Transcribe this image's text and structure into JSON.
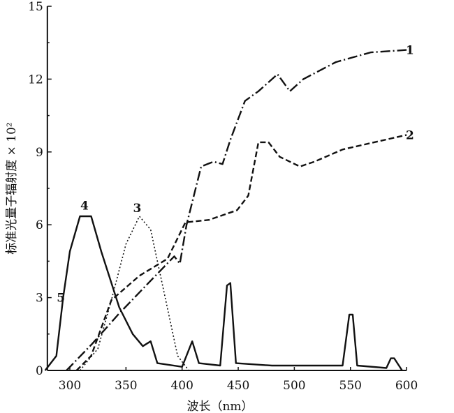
{
  "chart_data": {
    "type": "line",
    "title": "",
    "xlabel": "波长（nm）",
    "ylabel": "标准光量子辐射度 × 10²",
    "xlim": [
      275,
      600
    ],
    "ylim": [
      0,
      15
    ],
    "xticks": [
      300,
      350,
      400,
      450,
      500,
      550,
      600
    ],
    "yticks": [
      0,
      3,
      6,
      9,
      12,
      15
    ],
    "grid": false,
    "series": [
      {
        "name": "1",
        "style": "dash-dot",
        "points": [
          [
            297,
            0
          ],
          [
            320,
            1.1
          ],
          [
            343,
            2.3
          ],
          [
            370,
            3.6
          ],
          [
            393,
            4.7
          ],
          [
            398,
            4.4
          ],
          [
            404,
            6.0
          ],
          [
            417,
            8.4
          ],
          [
            428,
            8.6
          ],
          [
            436,
            8.5
          ],
          [
            443,
            9.5
          ],
          [
            456,
            11.1
          ],
          [
            468,
            11.5
          ],
          [
            485,
            12.2
          ],
          [
            496,
            11.5
          ],
          [
            508,
            12.0
          ],
          [
            537,
            12.7
          ],
          [
            568,
            13.1
          ],
          [
            600,
            13.2
          ]
        ]
      },
      {
        "name": "2",
        "style": "dashed",
        "points": [
          [
            306,
            0
          ],
          [
            319,
            0.6
          ],
          [
            337,
            2.9
          ],
          [
            362,
            3.9
          ],
          [
            387,
            4.6
          ],
          [
            403,
            6.1
          ],
          [
            424,
            6.2
          ],
          [
            449,
            6.6
          ],
          [
            459,
            7.2
          ],
          [
            468,
            9.4
          ],
          [
            477,
            9.4
          ],
          [
            487,
            8.8
          ],
          [
            505,
            8.4
          ],
          [
            518,
            8.6
          ],
          [
            543,
            9.1
          ],
          [
            600,
            9.7
          ]
        ]
      },
      {
        "name": "3",
        "style": "dotted",
        "points": [
          [
            309,
            0
          ],
          [
            325,
            0.9
          ],
          [
            337,
            2.9
          ],
          [
            350,
            5.2
          ],
          [
            362,
            6.35
          ],
          [
            372,
            5.8
          ],
          [
            384,
            3.2
          ],
          [
            396,
            0.6
          ],
          [
            406,
            0
          ]
        ]
      },
      {
        "name": "4",
        "style": "solid",
        "points": [
          [
            278,
            0
          ],
          [
            288,
            0.6
          ],
          [
            294,
            3.0
          ],
          [
            300,
            4.9
          ],
          [
            309,
            6.35
          ],
          [
            319,
            6.35
          ],
          [
            328,
            4.9
          ],
          [
            344,
            2.6
          ],
          [
            356,
            1.5
          ],
          [
            365,
            1.0
          ],
          [
            372,
            1.2
          ],
          [
            378,
            0.3
          ],
          [
            400,
            0.15
          ],
          [
            409,
            1.2
          ],
          [
            415,
            0.3
          ],
          [
            434,
            0.2
          ],
          [
            440,
            3.5
          ],
          [
            443,
            3.6
          ],
          [
            448,
            0.3
          ],
          [
            480,
            0.2
          ],
          [
            543,
            0.2
          ],
          [
            549,
            2.3
          ],
          [
            552,
            2.3
          ],
          [
            556,
            0.2
          ],
          [
            582,
            0.1
          ],
          [
            586,
            0.5
          ],
          [
            589,
            0.5
          ],
          [
            596,
            0
          ]
        ]
      }
    ],
    "annotations": [
      {
        "text": "1",
        "x": 603,
        "y": 13.2
      },
      {
        "text": "2",
        "x": 603,
        "y": 9.7
      },
      {
        "text": "3",
        "x": 360,
        "y": 6.7
      },
      {
        "text": "4",
        "x": 313,
        "y": 6.8
      },
      {
        "text": "5",
        "x": 292,
        "y": 3.0
      }
    ]
  }
}
